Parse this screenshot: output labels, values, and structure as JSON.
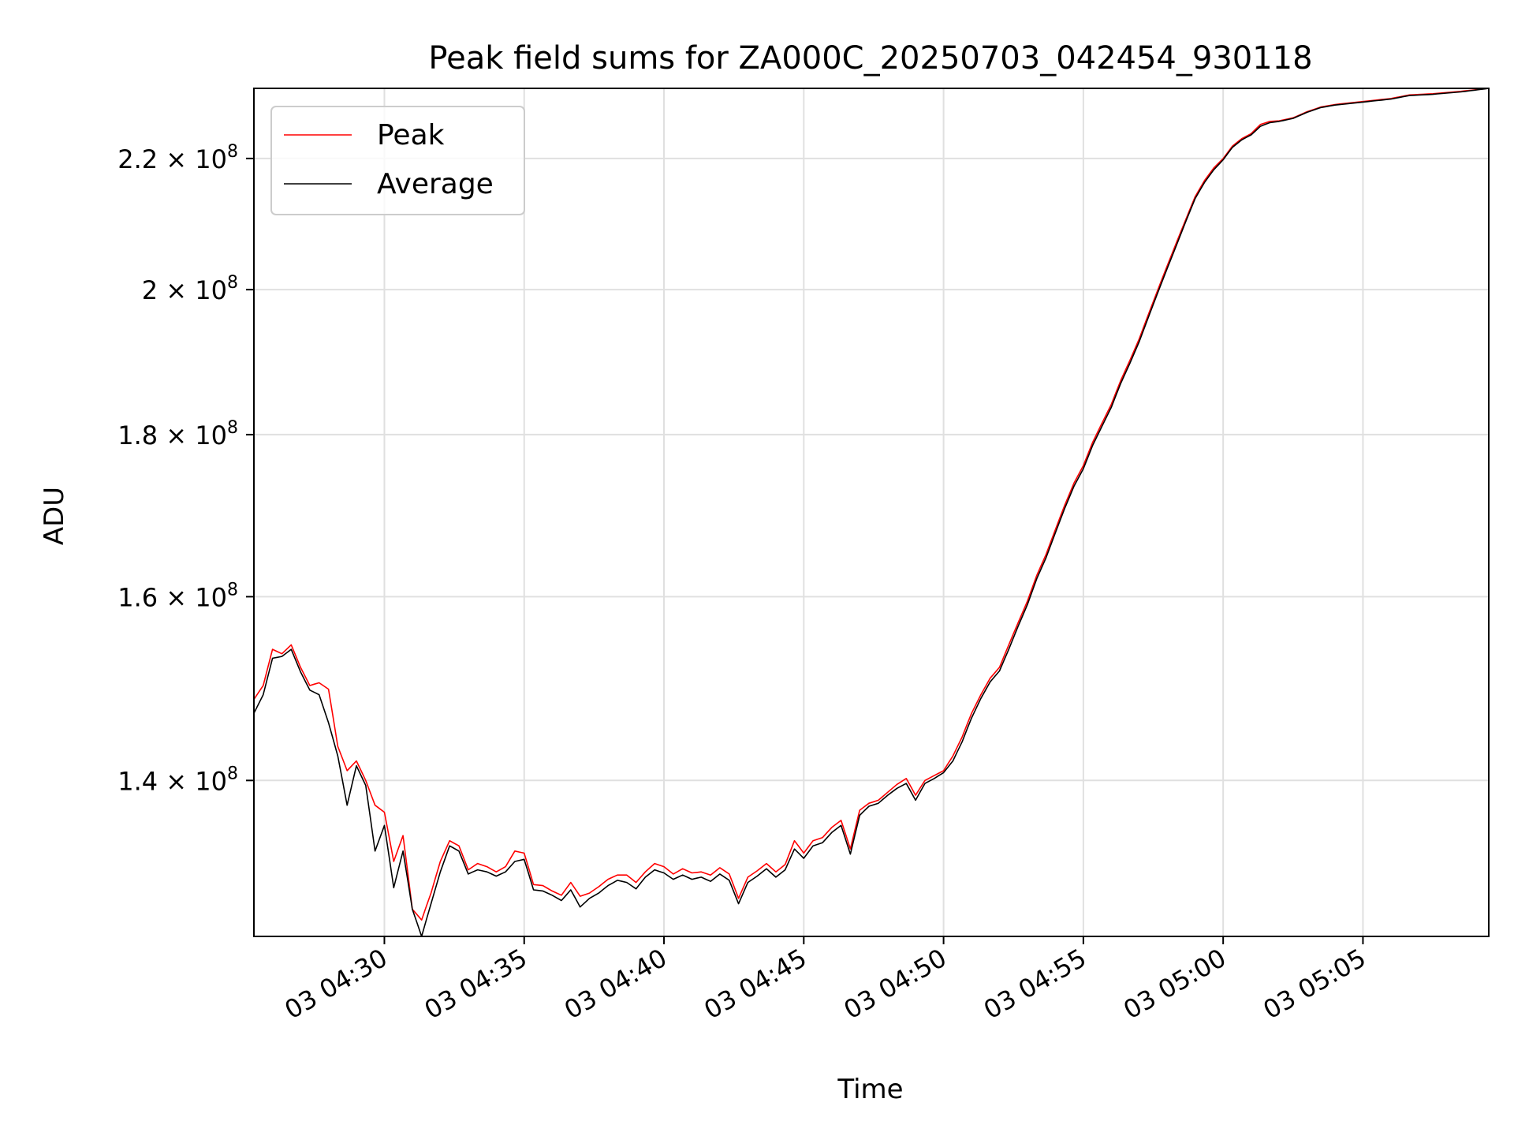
{
  "chart_data": {
    "type": "line",
    "title": "Peak field sums for ZA000C_20250703_042454_930118",
    "xlabel": "Time",
    "ylabel": "ADU",
    "x_start": "03 04:25:20",
    "x_end": "03 05:09:30",
    "x_ticks": [
      "03 04:30",
      "03 04:35",
      "03 04:40",
      "03 04:45",
      "03 04:50",
      "03 04:55",
      "03 05:00",
      "03 05:05"
    ],
    "y_scale": "log",
    "ylim": [
      125000000,
      231500000
    ],
    "y_ticks": [
      {
        "value": 140000000,
        "mantissa": "1.4",
        "exponent": "8"
      },
      {
        "value": 160000000,
        "mantissa": "1.6",
        "exponent": "8"
      },
      {
        "value": 180000000,
        "mantissa": "1.8",
        "exponent": "8"
      },
      {
        "value": 200000000,
        "mantissa": "2",
        "exponent": "8"
      },
      {
        "value": 220000000,
        "mantissa": "2.2",
        "exponent": "8"
      }
    ],
    "grid": true,
    "legend_position": "top-left",
    "series": [
      {
        "name": "Peak",
        "color": "#ff0000",
        "anchors": [
          [
            "03 04:25:20",
            148500000
          ],
          [
            "03 04:25:40",
            150000000
          ],
          [
            "03 04:26:00",
            154000000
          ],
          [
            "03 04:26:20",
            153500000
          ],
          [
            "03 04:26:40",
            154500000
          ],
          [
            "03 04:27:00",
            152000000
          ],
          [
            "03 04:27:20",
            150000000
          ],
          [
            "03 04:27:40",
            150300000
          ],
          [
            "03 04:28:00",
            149600000
          ],
          [
            "03 04:28:20",
            143500000
          ],
          [
            "03 04:28:40",
            141000000
          ],
          [
            "03 04:29:00",
            142000000
          ],
          [
            "03 04:29:20",
            140000000
          ],
          [
            "03 04:29:40",
            137500000
          ],
          [
            "03 04:30:00",
            136800000
          ],
          [
            "03 04:30:20",
            132000000
          ],
          [
            "03 04:30:40",
            134500000
          ],
          [
            "03 04:31:00",
            127500000
          ],
          [
            "03 04:31:20",
            126500000
          ],
          [
            "03 04:31:40",
            129000000
          ],
          [
            "03 04:32:00",
            132000000
          ],
          [
            "03 04:32:20",
            134000000
          ],
          [
            "03 04:32:40",
            133500000
          ],
          [
            "03 04:33:00",
            131200000
          ],
          [
            "03 04:33:20",
            131800000
          ],
          [
            "03 04:33:40",
            131500000
          ],
          [
            "03 04:34:00",
            131000000
          ],
          [
            "03 04:34:20",
            131500000
          ],
          [
            "03 04:34:40",
            133000000
          ],
          [
            "03 04:35:00",
            132800000
          ],
          [
            "03 04:35:20",
            129800000
          ],
          [
            "03 04:35:40",
            129700000
          ],
          [
            "03 04:36:00",
            129200000
          ],
          [
            "03 04:36:20",
            128800000
          ],
          [
            "03 04:36:40",
            130000000
          ],
          [
            "03 04:37:00",
            128700000
          ],
          [
            "03 04:37:20",
            129000000
          ],
          [
            "03 04:37:40",
            129600000
          ],
          [
            "03 04:38:00",
            130300000
          ],
          [
            "03 04:38:20",
            130700000
          ],
          [
            "03 04:38:40",
            130700000
          ],
          [
            "03 04:39:00",
            130000000
          ],
          [
            "03 04:39:20",
            131000000
          ],
          [
            "03 04:39:40",
            131800000
          ],
          [
            "03 04:40:00",
            131500000
          ],
          [
            "03 04:40:20",
            130800000
          ],
          [
            "03 04:40:40",
            131300000
          ],
          [
            "03 04:41:00",
            130900000
          ],
          [
            "03 04:41:20",
            131000000
          ],
          [
            "03 04:41:40",
            130700000
          ],
          [
            "03 04:42:00",
            131400000
          ],
          [
            "03 04:42:20",
            130800000
          ],
          [
            "03 04:42:40",
            128500000
          ],
          [
            "03 04:43:00",
            130500000
          ],
          [
            "03 04:43:20",
            131100000
          ],
          [
            "03 04:43:40",
            131800000
          ],
          [
            "03 04:44:00",
            131000000
          ],
          [
            "03 04:44:20",
            131700000
          ],
          [
            "03 04:44:40",
            134000000
          ],
          [
            "03 04:45:00",
            132800000
          ],
          [
            "03 04:45:20",
            134000000
          ],
          [
            "03 04:45:40",
            134300000
          ],
          [
            "03 04:46:00",
            135300000
          ],
          [
            "03 04:46:20",
            136000000
          ],
          [
            "03 04:46:40",
            133200000
          ],
          [
            "03 04:47:00",
            137000000
          ],
          [
            "03 04:47:20",
            137700000
          ],
          [
            "03 04:47:40",
            138000000
          ],
          [
            "03 04:48:00",
            138800000
          ],
          [
            "03 04:48:20",
            139600000
          ],
          [
            "03 04:48:40",
            140200000
          ],
          [
            "03 04:49:00",
            138500000
          ],
          [
            "03 04:49:20",
            140000000
          ],
          [
            "03 04:49:40",
            140500000
          ],
          [
            "03 04:50:00",
            141000000
          ],
          [
            "03 04:50:20",
            142500000
          ],
          [
            "03 04:50:40",
            144500000
          ],
          [
            "03 04:51:00",
            147000000
          ],
          [
            "03 04:51:20",
            149000000
          ],
          [
            "03 04:51:40",
            150800000
          ],
          [
            "03 04:52:00",
            152000000
          ],
          [
            "03 04:52:20",
            154500000
          ],
          [
            "03 04:52:40",
            157000000
          ],
          [
            "03 04:53:00",
            159500000
          ],
          [
            "03 04:53:20",
            162500000
          ],
          [
            "03 04:53:40",
            165000000
          ],
          [
            "03 04:54:00",
            168000000
          ],
          [
            "03 04:54:20",
            171000000
          ],
          [
            "03 04:54:40",
            173800000
          ],
          [
            "03 04:55:00",
            176000000
          ],
          [
            "03 04:55:20",
            179000000
          ],
          [
            "03 04:55:40",
            181500000
          ],
          [
            "03 04:56:00",
            184000000
          ],
          [
            "03 04:56:20",
            187200000
          ],
          [
            "03 04:56:40",
            190000000
          ],
          [
            "03 04:57:00",
            193000000
          ],
          [
            "03 04:57:20",
            196500000
          ],
          [
            "03 04:57:40",
            200000000
          ],
          [
            "03 04:58:00",
            203500000
          ],
          [
            "03 04:58:20",
            207000000
          ],
          [
            "03 04:58:40",
            210500000
          ],
          [
            "03 04:59:00",
            214000000
          ],
          [
            "03 04:59:20",
            216500000
          ],
          [
            "03 04:59:40",
            218500000
          ],
          [
            "03 05:00:00",
            220000000
          ],
          [
            "03 05:00:20",
            222000000
          ],
          [
            "03 05:00:40",
            223200000
          ],
          [
            "03 05:01:00",
            224000000
          ],
          [
            "03 05:01:20",
            225500000
          ],
          [
            "03 05:01:40",
            226000000
          ],
          [
            "03 05:02:00",
            226100000
          ],
          [
            "03 05:02:30",
            226600000
          ],
          [
            "03 05:03:00",
            227600000
          ],
          [
            "03 05:03:30",
            228400000
          ],
          [
            "03 05:04:00",
            228800000
          ],
          [
            "03 05:05:00",
            229300000
          ],
          [
            "03 05:06:00",
            229800000
          ],
          [
            "03 05:06:40",
            230400000
          ],
          [
            "03 05:07:30",
            230600000
          ],
          [
            "03 05:08:30",
            231000000
          ],
          [
            "03 05:09:30",
            231500000
          ]
        ]
      },
      {
        "name": "Average",
        "color": "#000000",
        "anchors": [
          [
            "03 04:25:20",
            147000000
          ],
          [
            "03 04:25:40",
            149000000
          ],
          [
            "03 04:26:00",
            153000000
          ],
          [
            "03 04:26:20",
            153200000
          ],
          [
            "03 04:26:40",
            154000000
          ],
          [
            "03 04:27:00",
            151500000
          ],
          [
            "03 04:27:20",
            149500000
          ],
          [
            "03 04:27:40",
            149000000
          ],
          [
            "03 04:28:00",
            146000000
          ],
          [
            "03 04:28:20",
            142500000
          ],
          [
            "03 04:28:40",
            137500000
          ],
          [
            "03 04:29:00",
            141500000
          ],
          [
            "03 04:29:20",
            139500000
          ],
          [
            "03 04:29:40",
            133000000
          ],
          [
            "03 04:30:00",
            135500000
          ],
          [
            "03 04:30:20",
            129500000
          ],
          [
            "03 04:30:40",
            133000000
          ],
          [
            "03 04:31:00",
            127500000
          ],
          [
            "03 04:31:20",
            125000000
          ],
          [
            "03 04:31:40",
            128000000
          ],
          [
            "03 04:32:00",
            131000000
          ],
          [
            "03 04:32:20",
            133500000
          ],
          [
            "03 04:32:40",
            133000000
          ],
          [
            "03 04:33:00",
            130800000
          ],
          [
            "03 04:33:20",
            131200000
          ],
          [
            "03 04:33:40",
            131000000
          ],
          [
            "03 04:34:00",
            130600000
          ],
          [
            "03 04:34:20",
            131000000
          ],
          [
            "03 04:34:40",
            132000000
          ],
          [
            "03 04:35:00",
            132200000
          ],
          [
            "03 04:35:20",
            129300000
          ],
          [
            "03 04:35:40",
            129200000
          ],
          [
            "03 04:36:00",
            128800000
          ],
          [
            "03 04:36:20",
            128300000
          ],
          [
            "03 04:36:40",
            129300000
          ],
          [
            "03 04:37:00",
            127700000
          ],
          [
            "03 04:37:20",
            128500000
          ],
          [
            "03 04:37:40",
            129000000
          ],
          [
            "03 04:38:00",
            129700000
          ],
          [
            "03 04:38:20",
            130200000
          ],
          [
            "03 04:38:40",
            130000000
          ],
          [
            "03 04:39:00",
            129400000
          ],
          [
            "03 04:39:20",
            130500000
          ],
          [
            "03 04:39:40",
            131200000
          ],
          [
            "03 04:40:00",
            130900000
          ],
          [
            "03 04:40:20",
            130300000
          ],
          [
            "03 04:40:40",
            130700000
          ],
          [
            "03 04:41:00",
            130300000
          ],
          [
            "03 04:41:20",
            130500000
          ],
          [
            "03 04:41:40",
            130100000
          ],
          [
            "03 04:42:00",
            130800000
          ],
          [
            "03 04:42:20",
            130200000
          ],
          [
            "03 04:42:40",
            128000000
          ],
          [
            "03 04:43:00",
            130000000
          ],
          [
            "03 04:43:20",
            130600000
          ],
          [
            "03 04:43:40",
            131300000
          ],
          [
            "03 04:44:00",
            130500000
          ],
          [
            "03 04:44:20",
            131200000
          ],
          [
            "03 04:44:40",
            133200000
          ],
          [
            "03 04:45:00",
            132300000
          ],
          [
            "03 04:45:20",
            133500000
          ],
          [
            "03 04:45:40",
            133800000
          ],
          [
            "03 04:46:00",
            134800000
          ],
          [
            "03 04:46:20",
            135500000
          ],
          [
            "03 04:46:40",
            132700000
          ],
          [
            "03 04:47:00",
            136500000
          ],
          [
            "03 04:47:20",
            137400000
          ],
          [
            "03 04:47:40",
            137700000
          ],
          [
            "03 04:48:00",
            138500000
          ],
          [
            "03 04:48:20",
            139200000
          ],
          [
            "03 04:48:40",
            139700000
          ],
          [
            "03 04:49:00",
            138000000
          ],
          [
            "03 04:49:20",
            139700000
          ],
          [
            "03 04:49:40",
            140200000
          ],
          [
            "03 04:50:00",
            140800000
          ],
          [
            "03 04:50:20",
            142000000
          ],
          [
            "03 04:50:40",
            144000000
          ],
          [
            "03 04:51:00",
            146500000
          ],
          [
            "03 04:51:20",
            148600000
          ],
          [
            "03 04:51:40",
            150400000
          ],
          [
            "03 04:52:00",
            151600000
          ],
          [
            "03 04:52:20",
            154000000
          ],
          [
            "03 04:52:40",
            156600000
          ],
          [
            "03 04:53:00",
            159100000
          ],
          [
            "03 04:53:20",
            162100000
          ],
          [
            "03 04:53:40",
            164600000
          ],
          [
            "03 04:54:00",
            167600000
          ],
          [
            "03 04:54:20",
            170600000
          ],
          [
            "03 04:54:40",
            173400000
          ],
          [
            "03 04:55:00",
            175600000
          ],
          [
            "03 04:55:20",
            178600000
          ],
          [
            "03 04:55:40",
            181100000
          ],
          [
            "03 04:56:00",
            183600000
          ],
          [
            "03 04:56:20",
            186800000
          ],
          [
            "03 04:56:40",
            189600000
          ],
          [
            "03 04:57:00",
            192600000
          ],
          [
            "03 04:57:20",
            196100000
          ],
          [
            "03 04:57:40",
            199600000
          ],
          [
            "03 04:58:00",
            203100000
          ],
          [
            "03 04:58:20",
            206600000
          ],
          [
            "03 04:58:40",
            210200000
          ],
          [
            "03 04:59:00",
            213700000
          ],
          [
            "03 04:59:20",
            216200000
          ],
          [
            "03 04:59:40",
            218200000
          ],
          [
            "03 05:00:00",
            219800000
          ],
          [
            "03 05:00:20",
            221800000
          ],
          [
            "03 05:00:40",
            223000000
          ],
          [
            "03 05:01:00",
            223800000
          ],
          [
            "03 05:01:20",
            225200000
          ],
          [
            "03 05:01:40",
            225800000
          ],
          [
            "03 05:02:00",
            226000000
          ],
          [
            "03 05:02:30",
            226500000
          ],
          [
            "03 05:03:00",
            227500000
          ],
          [
            "03 05:03:30",
            228300000
          ],
          [
            "03 05:04:00",
            228700000
          ],
          [
            "03 05:05:00",
            229200000
          ],
          [
            "03 05:06:00",
            229700000
          ],
          [
            "03 05:06:40",
            230300000
          ],
          [
            "03 05:07:30",
            230500000
          ],
          [
            "03 05:08:30",
            230900000
          ],
          [
            "03 05:09:30",
            231500000
          ]
        ]
      }
    ]
  }
}
